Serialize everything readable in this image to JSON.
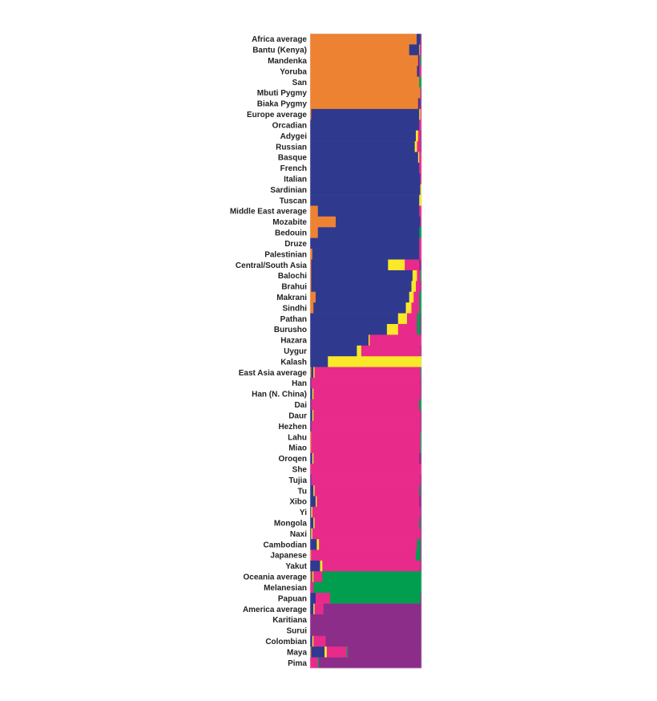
{
  "chart_data": {
    "type": "bar",
    "orientation": "horizontal",
    "stacked": true,
    "normalized": true,
    "xlim": [
      0,
      1
    ],
    "grid": false,
    "legend": "none",
    "component_colors": [
      "#ee8233",
      "#2f3a8f",
      "#fae829",
      "#e82a8b",
      "#019e4f",
      "#8c2d89"
    ],
    "categories": [
      "Africa average",
      "Bantu (Kenya)",
      "Mandenka",
      "Yoruba",
      "San",
      "Mbuti Pygmy",
      "Biaka Pygmy",
      "Europe average",
      "Orcadian",
      "Adygei",
      "Russian",
      "Basque",
      "French",
      "Italian",
      "Sardinian",
      "Tuscan",
      "Middle East average",
      "Mozabite",
      "Bedouin",
      "Druze",
      "Palestinian",
      "Central/South Asia",
      "Balochi",
      "Brahui",
      "Makrani",
      "Sindhi",
      "Pathan",
      "Burusho",
      "Hazara",
      "Uygur",
      "Kalash",
      "East Asia average",
      "Han",
      "Han (N. China)",
      "Dai",
      "Daur",
      "Hezhen",
      "Lahu",
      "Miao",
      "Oroqen",
      "She",
      "Tujia",
      "Tu",
      "Xibo",
      "Yi",
      "Mongola",
      "Naxi",
      "Cambodian",
      "Japanese",
      "Yakut",
      "Oceania average",
      "Melanesian",
      "Papuan",
      "America average",
      "Karitiana",
      "Surui",
      "Colombian",
      "Maya",
      "Pima"
    ],
    "values": [
      [
        0.957,
        0.03,
        0,
        0,
        0,
        0.013
      ],
      [
        0.89,
        0.09,
        0.005,
        0.01,
        0,
        0.005
      ],
      [
        0.97,
        0.01,
        0,
        0.01,
        0.01,
        0
      ],
      [
        0.96,
        0.02,
        0,
        0.02,
        0,
        0
      ],
      [
        0.98,
        0,
        0,
        0,
        0.02,
        0
      ],
      [
        0.99,
        0,
        0,
        0,
        0,
        0.01
      ],
      [
        0.97,
        0.01,
        0,
        0,
        0,
        0.02
      ],
      [
        0.01,
        0.97,
        0.01,
        0.01,
        0,
        0
      ],
      [
        0,
        0.98,
        0,
        0.02,
        0,
        0
      ],
      [
        0,
        0.95,
        0.02,
        0.02,
        0,
        0.01
      ],
      [
        0,
        0.94,
        0.02,
        0.03,
        0,
        0.01
      ],
      [
        0,
        0.97,
        0.01,
        0.02,
        0,
        0
      ],
      [
        0,
        0.98,
        0,
        0.02,
        0,
        0
      ],
      [
        0,
        0.99,
        0,
        0.01,
        0,
        0
      ],
      [
        0,
        0.99,
        0.01,
        0,
        0,
        0
      ],
      [
        0,
        0.98,
        0.02,
        0,
        0,
        0
      ],
      [
        0.07,
        0.91,
        0,
        0.02,
        0,
        0
      ],
      [
        0.23,
        0.76,
        0,
        0.01,
        0,
        0
      ],
      [
        0.07,
        0.91,
        0,
        0,
        0.02,
        0
      ],
      [
        0,
        0.98,
        0,
        0.02,
        0,
        0
      ],
      [
        0.02,
        0.96,
        0,
        0.02,
        0,
        0
      ],
      [
        0.01,
        0.69,
        0.15,
        0.13,
        0,
        0.02
      ],
      [
        0.01,
        0.91,
        0.04,
        0.03,
        0.01,
        0
      ],
      [
        0.01,
        0.9,
        0.04,
        0.04,
        0,
        0.01
      ],
      [
        0.05,
        0.84,
        0.04,
        0.05,
        0.02,
        0
      ],
      [
        0.03,
        0.83,
        0.05,
        0.07,
        0.02,
        0
      ],
      [
        0,
        0.79,
        0.08,
        0.09,
        0.03,
        0.01
      ],
      [
        0,
        0.69,
        0.1,
        0.17,
        0.03,
        0.01
      ],
      [
        0,
        0.525,
        0.01,
        0.465,
        0,
        0
      ],
      [
        0,
        0.42,
        0.04,
        0.53,
        0,
        0.01
      ],
      [
        0,
        0.16,
        0.84,
        0,
        0,
        0
      ],
      [
        0.01,
        0.02,
        0.01,
        0.95,
        0.005,
        0.005
      ],
      [
        0,
        0.01,
        0,
        0.98,
        0,
        0.01
      ],
      [
        0,
        0.02,
        0.01,
        0.96,
        0,
        0.01
      ],
      [
        0,
        0.01,
        0,
        0.97,
        0.02,
        0
      ],
      [
        0,
        0.02,
        0.01,
        0.96,
        0,
        0.01
      ],
      [
        0,
        0.01,
        0,
        0.98,
        0,
        0.01
      ],
      [
        0.01,
        0,
        0,
        0.98,
        0.01,
        0
      ],
      [
        0.01,
        0,
        0,
        0.98,
        0.01,
        0
      ],
      [
        0,
        0.02,
        0.01,
        0.95,
        0,
        0.02
      ],
      [
        0,
        0,
        0,
        1.0,
        0,
        0
      ],
      [
        0,
        0.01,
        0,
        0.98,
        0,
        0.01
      ],
      [
        0,
        0.03,
        0.01,
        0.94,
        0.01,
        0.01
      ],
      [
        0,
        0.05,
        0.01,
        0.92,
        0,
        0.02
      ],
      [
        0,
        0.01,
        0.01,
        0.97,
        0,
        0.01
      ],
      [
        0,
        0.03,
        0.01,
        0.94,
        0.01,
        0.01
      ],
      [
        0,
        0.01,
        0.01,
        0.97,
        0,
        0.01
      ],
      [
        0,
        0.06,
        0.02,
        0.88,
        0.03,
        0.01
      ],
      [
        0.01,
        0,
        0,
        0.94,
        0.04,
        0.01
      ],
      [
        0,
        0.09,
        0.02,
        0.88,
        0,
        0.01
      ],
      [
        0.01,
        0.01,
        0.01,
        0.08,
        0.89,
        0
      ],
      [
        0,
        0,
        0,
        0.03,
        0.97,
        0
      ],
      [
        0,
        0.05,
        0,
        0.13,
        0.81,
        0.01
      ],
      [
        0,
        0.03,
        0.01,
        0.08,
        0,
        0.88
      ],
      [
        0,
        0,
        0,
        0,
        0,
        1.0
      ],
      [
        0,
        0,
        0,
        0,
        0,
        1.0
      ],
      [
        0,
        0.02,
        0.01,
        0.11,
        0,
        0.86
      ],
      [
        0.01,
        0.12,
        0.02,
        0.18,
        0.01,
        0.66
      ],
      [
        0,
        0,
        0,
        0.07,
        0.01,
        0.92
      ]
    ]
  }
}
